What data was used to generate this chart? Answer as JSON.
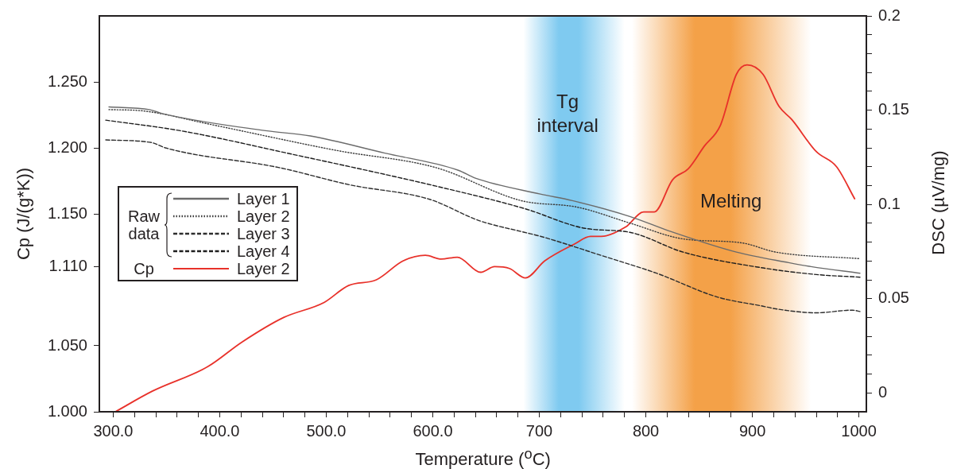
{
  "chart_data": {
    "type": "line",
    "xlabel": "Temperature ($^{o}$C)",
    "ylabel": "Cp (J/(g*K))",
    "y2label": "DSC (µV/mg)",
    "xlim": [
      287,
      1007
    ],
    "xticks": [
      {
        "value": 300,
        "label": "300.0"
      },
      {
        "value": 320,
        "label": null
      },
      {
        "value": 340,
        "label": null
      },
      {
        "value": 360,
        "label": null
      },
      {
        "value": 380,
        "label": null
      },
      {
        "value": 400,
        "label": "400.0"
      },
      {
        "value": 420,
        "label": null
      },
      {
        "value": 440,
        "label": null
      },
      {
        "value": 460,
        "label": null
      },
      {
        "value": 480,
        "label": null
      },
      {
        "value": 500,
        "label": "500.0"
      },
      {
        "value": 520,
        "label": null
      },
      {
        "value": 540,
        "label": null
      },
      {
        "value": 560,
        "label": null
      },
      {
        "value": 580,
        "label": null
      },
      {
        "value": 600,
        "label": "600.0"
      },
      {
        "value": 620,
        "label": null
      },
      {
        "value": 640,
        "label": null
      },
      {
        "value": 660,
        "label": null
      },
      {
        "value": 680,
        "label": null
      },
      700,
      {
        "value": 720,
        "label": null
      },
      {
        "value": 740,
        "label": null
      },
      {
        "value": 760,
        "label": null
      },
      {
        "value": 780,
        "label": null
      },
      800,
      {
        "value": 820,
        "label": null
      },
      {
        "value": 840,
        "label": null
      },
      {
        "value": 860,
        "label": null
      },
      {
        "value": 880,
        "label": null
      },
      900,
      {
        "value": 920,
        "label": null
      },
      {
        "value": 940,
        "label": null
      },
      {
        "value": 960,
        "label": null
      },
      {
        "value": 980,
        "label": null
      },
      1000
    ],
    "ylim": [
      1.0,
      1.3
    ],
    "yticks": [
      {
        "value": 1.0,
        "label": "1.000"
      },
      {
        "value": 1.05,
        "label": "1.050"
      },
      {
        "value": 1.11,
        "label": "1.110"
      },
      {
        "value": 1.15,
        "label": "1.150"
      },
      {
        "value": 1.2,
        "label": "1.200"
      },
      {
        "value": 1.25,
        "label": "1.250"
      }
    ],
    "y2lim": [
      -0.01,
      0.2
    ],
    "y2ticks": [
      0,
      {
        "value": 0.01,
        "label": null
      },
      {
        "value": 0.02,
        "label": null
      },
      {
        "value": 0.03,
        "label": null
      },
      {
        "value": 0.04,
        "label": null
      },
      0.05,
      {
        "value": 0.06,
        "label": null
      },
      {
        "value": 0.07,
        "label": null
      },
      {
        "value": 0.08,
        "label": null
      },
      {
        "value": 0.09,
        "label": null
      },
      0.1,
      {
        "value": 0.11,
        "label": null
      },
      {
        "value": 0.12,
        "label": null
      },
      {
        "value": 0.13,
        "label": null
      },
      {
        "value": 0.14,
        "label": null
      },
      0.15,
      {
        "value": 0.16,
        "label": null
      },
      {
        "value": 0.17,
        "label": null
      },
      {
        "value": 0.18,
        "label": null
      },
      {
        "value": 0.19,
        "label": null
      },
      0.2
    ],
    "grid": false,
    "marker": "none",
    "legend": "center left",
    "annotations": [
      "Raw data",
      "Cp"
    ],
    "bands": [
      {
        "axis": "x",
        "from": 685,
        "to": 780,
        "label": "Tg interval",
        "color": "#7fcaf0"
      },
      {
        "axis": "x",
        "from": 787,
        "to": 955,
        "label": "Melting",
        "color": "#f4a148"
      }
    ],
    "series": [
      {
        "name": "Layer 1",
        "color": "#6b6b6b",
        "line_style": "solid",
        "x": [
          296,
          334,
          346,
          443,
          485,
          555,
          624,
          640,
          701,
          731,
          785,
          822,
          885,
          934,
          955,
          1001
        ],
        "values": [
          1.231,
          1.229,
          1.226,
          1.213,
          1.209,
          1.196,
          1.183,
          1.177,
          1.165,
          1.16,
          1.148,
          1.137,
          1.121,
          1.113,
          1.11,
          1.105
        ]
      },
      {
        "name": "Layer 2",
        "color": "#3c3c3c",
        "line_style": "dotted",
        "x": [
          296,
          328,
          390,
          510,
          603,
          683,
          736,
          785,
          835,
          890,
          922,
          1001
        ],
        "values": [
          1.229,
          1.228,
          1.218,
          1.198,
          1.185,
          1.16,
          1.155,
          1.143,
          1.131,
          1.128,
          1.121,
          1.116
        ]
      },
      {
        "name": "Layer 3",
        "color": "#2e2e2e",
        "line_style": "dashed",
        "x": [
          293,
          336,
          349,
          456,
          522,
          597,
          643,
          686,
          701,
          760,
          810,
          867,
          910,
          922,
          960,
          994,
          1001
        ],
        "values": [
          1.206,
          1.204,
          1.2,
          1.185,
          1.172,
          1.161,
          1.145,
          1.136,
          1.133,
          1.118,
          1.105,
          1.087,
          1.08,
          1.078,
          1.075,
          1.077,
          1.076
        ]
      },
      {
        "name": "Layer 4",
        "color": "#1e1e1e",
        "line_style": "dashed",
        "x": [
          293,
          363,
          469,
          603,
          686,
          743,
          785,
          835,
          910,
          960,
          1001
        ],
        "values": [
          1.221,
          1.213,
          1.195,
          1.171,
          1.154,
          1.139,
          1.136,
          1.121,
          1.109,
          1.104,
          1.102
        ]
      },
      {
        "name": "Layer 2",
        "color": "#e8312a",
        "line_style": "solid",
        "axis": "y2",
        "x": [
          302,
          337,
          389,
          421,
          460,
          498,
          521,
          547,
          572,
          593,
          608,
          623,
          645,
          658,
          672,
          687,
          705,
          733,
          748,
          758,
          781,
          798,
          808,
          825,
          840,
          855,
          870,
          885,
          895,
          910,
          925,
          937,
          960,
          979,
          996
        ],
        "values": [
          -0.01,
          0.001,
          0.014,
          0.027,
          0.04,
          0.048,
          0.057,
          0.06,
          0.07,
          0.073,
          0.071,
          0.072,
          0.064,
          0.067,
          0.066,
          0.061,
          0.07,
          0.079,
          0.083,
          0.083,
          0.088,
          0.096,
          0.096,
          0.113,
          0.119,
          0.131,
          0.142,
          0.169,
          0.174,
          0.169,
          0.152,
          0.145,
          0.128,
          0.12,
          0.103
        ]
      }
    ]
  }
}
